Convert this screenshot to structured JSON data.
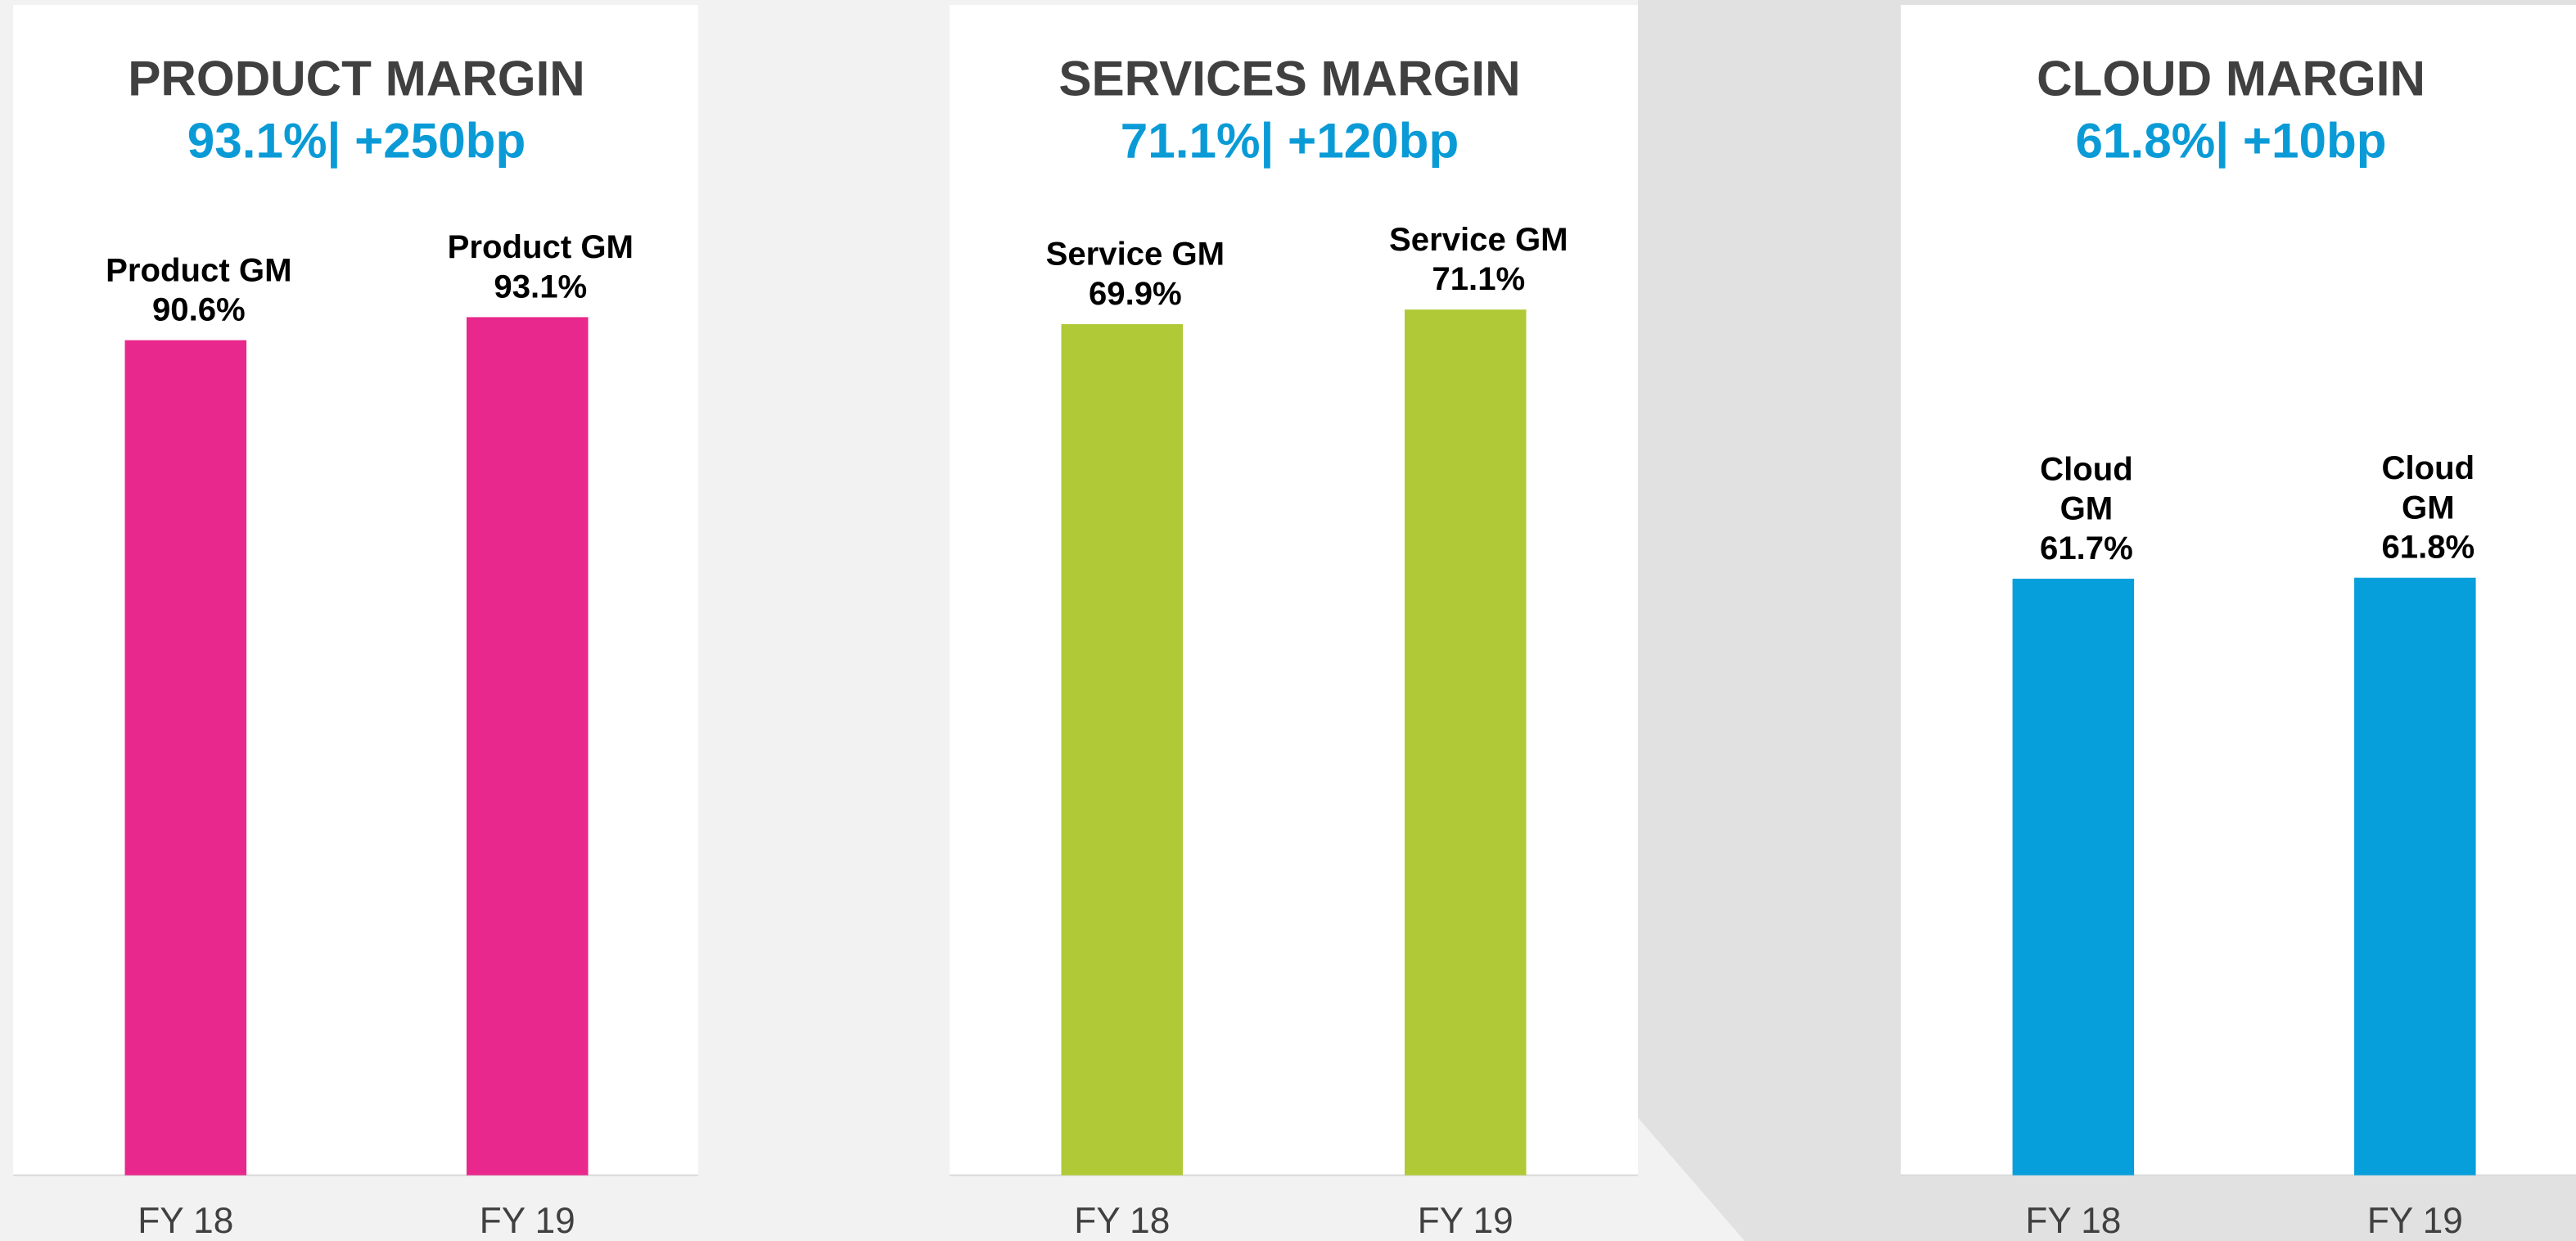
{
  "chart_data": [
    {
      "type": "bar",
      "title": "PRODUCT MARGIN",
      "subtitle": "93.1%| +250bp",
      "categories": [
        "FY 18",
        "FY 19"
      ],
      "values": [
        90.6,
        93.1
      ],
      "value_labels": [
        [
          "Product GM",
          "90.6%"
        ],
        [
          "Product GM",
          "93.1%"
        ]
      ],
      "color": "#e8288c",
      "ylim": [
        0,
        107
      ]
    },
    {
      "type": "bar",
      "title": "SERVICES MARGIN",
      "subtitle": "71.1%| +120bp",
      "categories": [
        "FY 18",
        "FY 19"
      ],
      "values": [
        69.9,
        71.1
      ],
      "value_labels": [
        [
          "Service GM",
          "69.9%"
        ],
        [
          "Service GM",
          "71.1%"
        ]
      ],
      "color": "#b0c936",
      "ylim": [
        0,
        81
      ]
    },
    {
      "type": "bar",
      "title": "CLOUD MARGIN",
      "subtitle": "61.8%| +10bp",
      "categories": [
        "FY 18",
        "FY 19"
      ],
      "values": [
        61.7,
        61.8
      ],
      "value_labels": [
        [
          "Cloud",
          "GM",
          "61.7%"
        ],
        [
          "Cloud",
          "GM",
          "61.8%"
        ]
      ],
      "color": "#079fdb",
      "ylim": [
        0,
        102
      ]
    }
  ]
}
